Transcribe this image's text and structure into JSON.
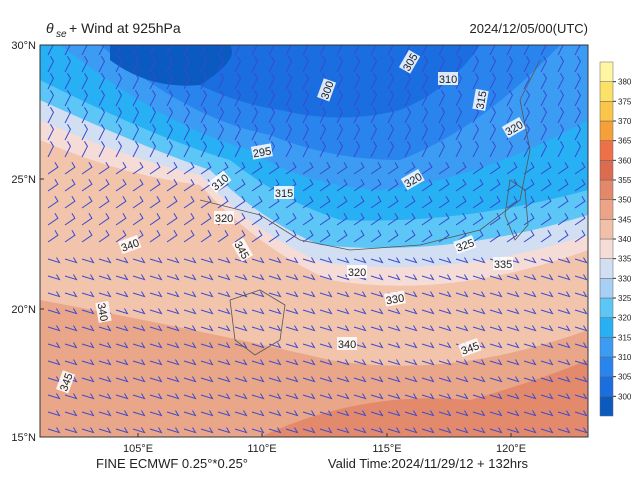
{
  "header": {
    "symbol": "θ",
    "subscript": "se",
    "title": "+ Wind at 925hPa",
    "date": "2024/12/05/00(UTC)"
  },
  "axes": {
    "lat_labels": [
      "30°N",
      "25°N",
      "20°N",
      "15°N"
    ],
    "lon_labels": [
      "105°E",
      "110°E",
      "115°E",
      "120°E"
    ]
  },
  "colorbar": {
    "ticks": [
      300,
      305,
      310,
      315,
      320,
      325,
      330,
      335,
      340,
      345,
      350,
      355,
      360,
      365,
      370,
      375,
      380
    ],
    "colors": [
      "#0a5ac0",
      "#1a6ee0",
      "#2a84ee",
      "#3c9cf4",
      "#27b0f4",
      "#5cc6f6",
      "#a8cff4",
      "#d2def2",
      "#f6dcd6",
      "#f2c0a8",
      "#eba486",
      "#e4886a",
      "#dc6c50",
      "#ee7048",
      "#f5a038",
      "#fac548",
      "#fde066",
      "#fff6a4"
    ]
  },
  "contour_labels": [
    "300",
    "305",
    "310",
    "315",
    "320",
    "295",
    "310",
    "315",
    "320",
    "320",
    "345",
    "340",
    "325",
    "335",
    "320",
    "340",
    "340",
    "345",
    "345",
    "330"
  ],
  "footer": {
    "left": "FINE ECMWF 0.25°*0.25°",
    "right": "Valid Time:2024/11/29/12 + 132hrs"
  }
}
